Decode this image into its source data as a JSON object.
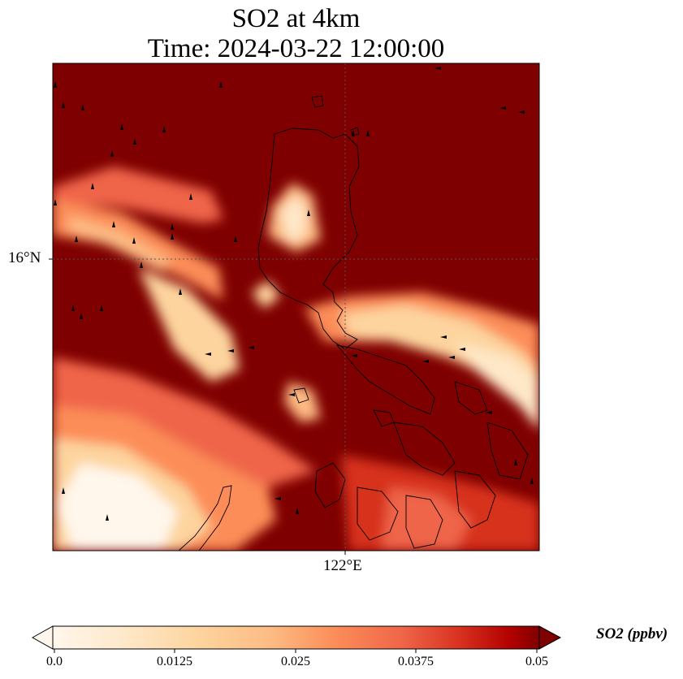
{
  "title": {
    "line1": "SO2 at 4km",
    "line2": "Time: 2024-03-22 12:00:00"
  },
  "map": {
    "lat_label": "16°N",
    "lon_label": "122°E",
    "colormap": "OrRd",
    "colors": {
      "low": "#fff7ec",
      "high": "#7f0000",
      "coastline": "#000000",
      "gridline": "#555555"
    },
    "features": [
      "coastlines",
      "wind-vectors",
      "gridlines"
    ]
  },
  "colorbar": {
    "label": "SO2 (ppbv)",
    "ticks": [
      "0.0",
      "0.0125",
      "0.025",
      "0.0375",
      "0.05"
    ],
    "min": 0,
    "max": 0.05,
    "extend": "both"
  }
}
